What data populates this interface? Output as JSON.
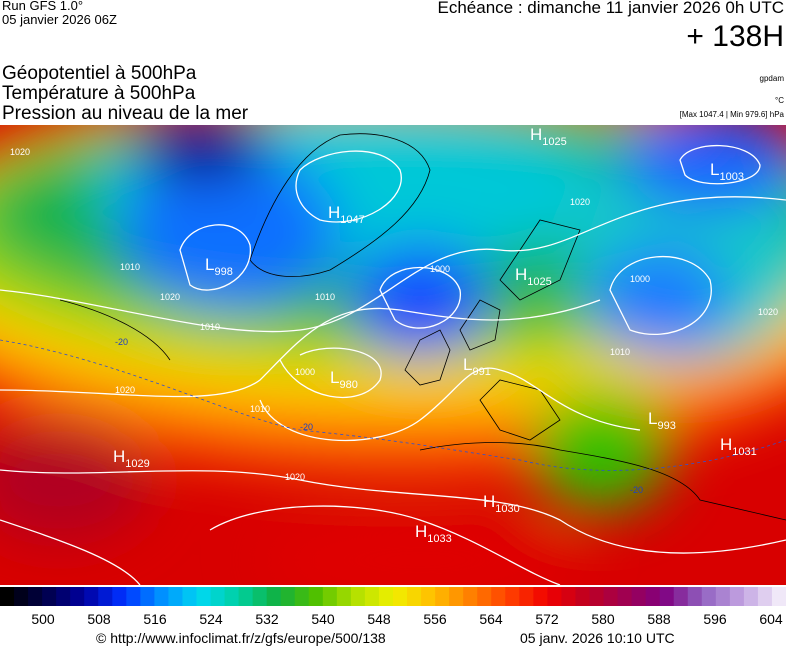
{
  "header": {
    "run": "Run GFS 1.0°",
    "date": "05 janvier 2026 06Z",
    "echeance": "Echéance : dimanche 11 janvier 2026 0h UTC",
    "lead": "+ 138H"
  },
  "titles": [
    "Géopotentiel à 500hPa",
    "Température à 500hPa",
    "Pression au niveau de la mer"
  ],
  "units": [
    "gpdam",
    "°C",
    "[Max 1047.4 | Min 979.6] hPa"
  ],
  "pressure_centers": [
    {
      "letter": "H",
      "value": "1025"
    },
    {
      "letter": "H",
      "value": "1047"
    },
    {
      "letter": "L",
      "value": "1003"
    },
    {
      "letter": "L",
      "value": "998"
    },
    {
      "letter": "H",
      "value": "1025"
    },
    {
      "letter": "L",
      "value": "980"
    },
    {
      "letter": "L",
      "value": "991"
    },
    {
      "letter": "L",
      "value": "993"
    },
    {
      "letter": "H",
      "value": "1031"
    },
    {
      "letter": "H",
      "value": "1029"
    },
    {
      "letter": "H",
      "value": "1030"
    },
    {
      "letter": "H",
      "value": "1033"
    }
  ],
  "isobar_labels": [
    "1020",
    "1010",
    "1020",
    "1010",
    "1000",
    "1010",
    "1000",
    "1020",
    "1010",
    "1020",
    "1000",
    "1010",
    "1020",
    "1020"
  ],
  "temperature_labels": [
    "-20",
    "-20",
    "-20"
  ],
  "colorbar": {
    "ticks": [
      500,
      508,
      516,
      524,
      532,
      540,
      548,
      556,
      564,
      572,
      580,
      588,
      596,
      604
    ]
  },
  "footer": {
    "source": "© http://www.infoclimat.fr/z/gfs/europe/500/138",
    "timestamp": "05 janv. 2026 10:10 UTC"
  }
}
